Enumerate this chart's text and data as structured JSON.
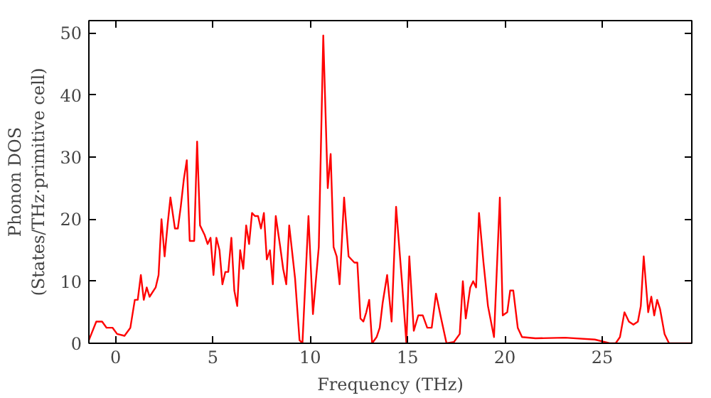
{
  "chart_data": {
    "type": "line",
    "xlabel": "Frequency (THz)",
    "ylabel": "Phonon DOS\n(States/THz·primitive cell)",
    "xlim": [
      -1.37,
      29.6
    ],
    "ylim": [
      0,
      52
    ],
    "xticks": [
      0,
      5,
      10,
      15,
      20,
      25
    ],
    "yticks": [
      0,
      10,
      20,
      30,
      40,
      50
    ],
    "grid": false,
    "series": [
      {
        "color": "#ff0000",
        "x": [
          -1.37,
          -0.99,
          -0.69,
          -0.46,
          -0.15,
          0.08,
          0.46,
          0.76,
          0.99,
          1.14,
          1.3,
          1.45,
          1.6,
          1.75,
          2.06,
          2.21,
          2.36,
          2.52,
          2.67,
          2.82,
          3.05,
          3.2,
          3.35,
          3.51,
          3.66,
          3.81,
          4.04,
          4.19,
          4.34,
          4.57,
          4.73,
          4.88,
          5.03,
          5.18,
          5.34,
          5.49,
          5.64,
          5.79,
          5.95,
          6.1,
          6.25,
          6.4,
          6.56,
          6.71,
          6.86,
          7.01,
          7.16,
          7.32,
          7.47,
          7.62,
          7.77,
          7.93,
          8.08,
          8.23,
          8.46,
          8.61,
          8.77,
          8.92,
          9.22,
          9.45,
          9.6,
          9.91,
          10.14,
          10.44,
          10.67,
          10.9,
          11.05,
          11.2,
          11.36,
          11.51,
          11.74,
          11.97,
          12.27,
          12.42,
          12.58,
          12.73,
          12.88,
          13.03,
          13.18,
          13.41,
          13.57,
          13.72,
          13.95,
          14.18,
          14.41,
          14.71,
          14.94,
          15.09,
          15.32,
          15.55,
          15.78,
          16.01,
          16.24,
          16.46,
          16.69,
          17.0,
          17.38,
          17.68,
          17.84,
          17.99,
          18.22,
          18.37,
          18.52,
          18.67,
          18.9,
          19.13,
          19.44,
          19.74,
          19.89,
          20.12,
          20.27,
          20.43,
          20.66,
          20.88,
          21.57,
          23.09,
          24.62,
          25.38,
          25.69,
          25.91,
          26.14,
          26.37,
          26.6,
          26.83,
          26.98,
          27.13,
          27.36,
          27.52,
          27.67,
          27.82,
          27.97,
          28.2,
          28.43,
          29.57
        ],
        "values": [
          0.5,
          3.5,
          3.5,
          2.5,
          2.5,
          1.5,
          1.2,
          2.5,
          7,
          7,
          11,
          7,
          9,
          7.5,
          9,
          11,
          20,
          14,
          19,
          23.5,
          18.5,
          18.5,
          22,
          26.5,
          29.5,
          16.5,
          16.5,
          32.5,
          19,
          17.5,
          16,
          17,
          11,
          17,
          15,
          9.5,
          11.5,
          11.5,
          17,
          8.5,
          6,
          15,
          12,
          19,
          16,
          21,
          20.5,
          20.5,
          18.5,
          21,
          13.5,
          15,
          9.5,
          20.5,
          15.5,
          12,
          9.5,
          19,
          10.5,
          0.5,
          0,
          20.5,
          4.7,
          15.5,
          49.6,
          25,
          30.5,
          15.5,
          14,
          9.5,
          23.5,
          14,
          13,
          13,
          4,
          3.5,
          5,
          7,
          0,
          1,
          2.5,
          6.5,
          11,
          3.5,
          22,
          10,
          0,
          14,
          2,
          4.5,
          4.5,
          2.5,
          2.5,
          8,
          4.5,
          0,
          0.2,
          1.5,
          10,
          4,
          9,
          10,
          9,
          21,
          13,
          6,
          1,
          23.5,
          4.5,
          5,
          8.5,
          8.5,
          2.5,
          1,
          0.8,
          0.9,
          0.6,
          0,
          0,
          1,
          5,
          3.5,
          3,
          3.5,
          6,
          14,
          5,
          7.5,
          4.5,
          7,
          5.5,
          1.5,
          0,
          0
        ]
      }
    ]
  }
}
